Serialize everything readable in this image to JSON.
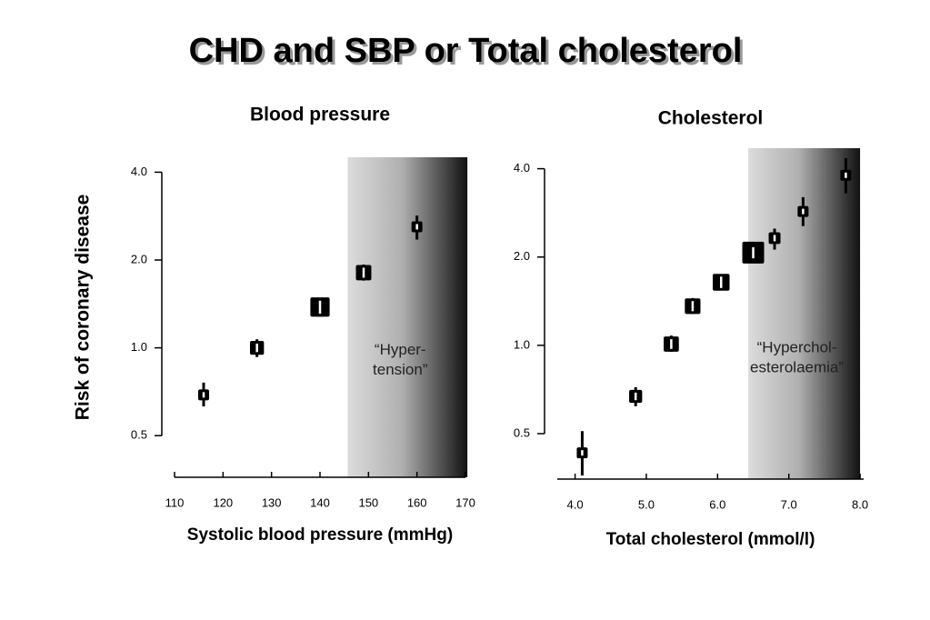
{
  "title": "CHD and SBP or Total cholesterol",
  "y_label": "Risk of coronary disease",
  "chart_data": [
    {
      "type": "scatter",
      "title": "Blood  pressure",
      "x_label": "Systolic blood pressure (mmHg)",
      "xlim": [
        110,
        170
      ],
      "xticks": [
        110,
        120,
        130,
        140,
        150,
        160,
        170
      ],
      "ylim": [
        0.36,
        4.5
      ],
      "log_y": true,
      "yticks": [
        0.5,
        {
          "value": 1,
          "label": "1.0"
        },
        {
          "value": 2,
          "label": "2.0"
        },
        {
          "value": 4,
          "label": "4.0"
        }
      ],
      "shade": {
        "range": [
          145.7,
          170.4
        ],
        "label": [
          "“Hyper-",
          "tension”"
        ]
      },
      "series": [
        {
          "color": "#000000",
          "x": [
            116,
            127,
            140,
            149,
            160
          ],
          "values": [
            0.69,
            1.0,
            1.38,
            1.81,
            2.6
          ],
          "lower": [
            0.63,
            0.93,
            1.31,
            1.7,
            2.35
          ],
          "upper": [
            0.76,
            1.07,
            1.45,
            1.93,
            2.84
          ]
        }
      ]
    },
    {
      "type": "scatter",
      "title": "Cholesterol",
      "x_label": "Total cholesterol (mmol/l)",
      "xlim": [
        3.75,
        8.05
      ],
      "xticks": [
        {
          "value": 4,
          "label": "4.0"
        },
        {
          "value": 5,
          "label": "5.0"
        },
        {
          "value": 6,
          "label": "6.0"
        },
        {
          "value": 7,
          "label": "7.0"
        },
        {
          "value": 8,
          "label": "8.0"
        }
      ],
      "ylim": [
        0.35,
        4.7
      ],
      "log_y": true,
      "yticks": [
        0.5,
        {
          "value": 1,
          "label": "1.0"
        },
        {
          "value": 2,
          "label": "2.0"
        },
        {
          "value": 4,
          "label": "4.0"
        }
      ],
      "shade": {
        "range": [
          6.43,
          8.0
        ],
        "label": [
          "“Hyperchol-",
          "esterolaemia”"
        ]
      },
      "series": [
        {
          "color": "#000000",
          "x": [
            4.1,
            4.85,
            5.35,
            5.65,
            6.05,
            6.5,
            6.8,
            7.2,
            7.8
          ],
          "values": [
            0.43,
            0.67,
            1.01,
            1.36,
            1.64,
            2.07,
            2.32,
            2.86,
            3.8
          ],
          "lower": [
            0.36,
            0.62,
            0.95,
            1.28,
            1.55,
            1.98,
            2.12,
            2.55,
            3.3
          ],
          "upper": [
            0.51,
            0.72,
            1.08,
            1.45,
            1.74,
            2.16,
            2.5,
            3.2,
            4.35
          ]
        }
      ]
    }
  ]
}
